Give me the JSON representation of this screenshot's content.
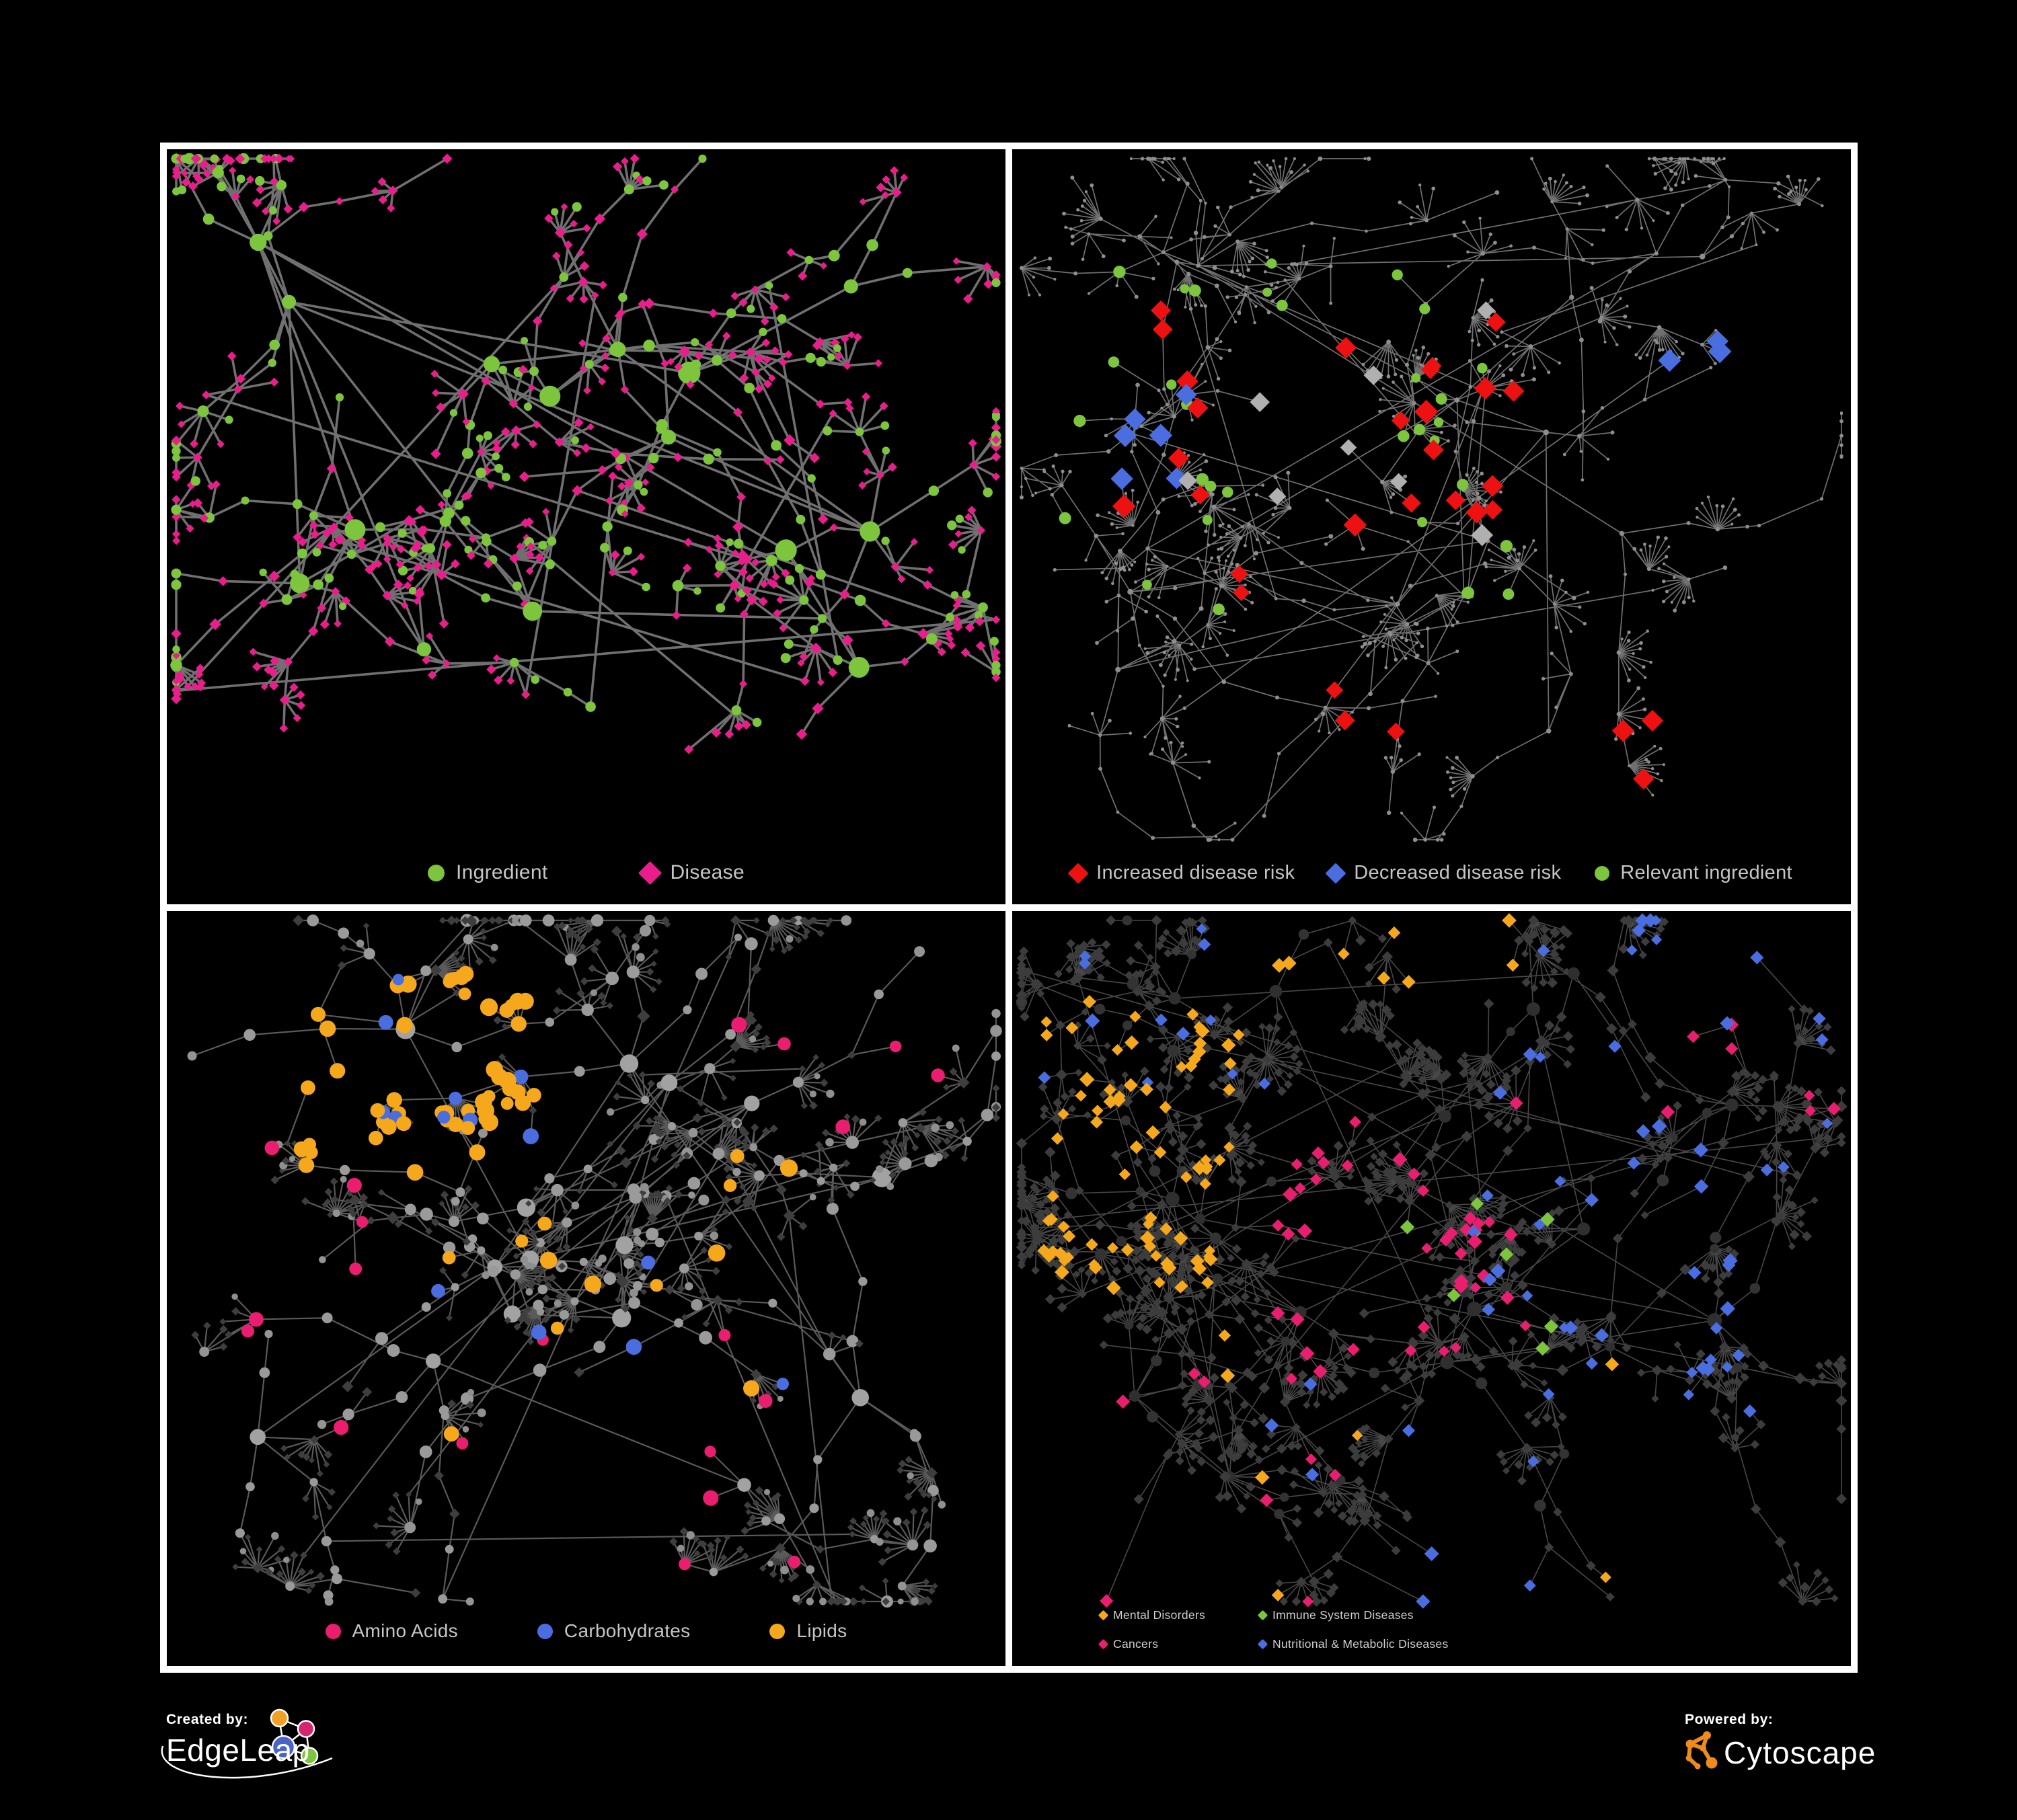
{
  "canvas": {
    "background": "#000000",
    "frame_color": "#ffffff",
    "panel_background": "#000000",
    "legend_text_color": "#c6c6c6"
  },
  "panels": [
    {
      "name": "ingredient-disease",
      "legend": {
        "items": [
          {
            "label": "Ingredient",
            "shape": "circle",
            "color": "#7cc53c"
          },
          {
            "label": "Disease",
            "shape": "diamond",
            "color": "#ea1d8c"
          }
        ]
      },
      "network": {
        "seed": 7,
        "clusters": 15,
        "fan": 0.34,
        "fanMax": 5,
        "cross": 12,
        "edge": {
          "color": "#7a7a7a",
          "width": 3.6,
          "opacity": 0.92
        },
        "roles": {
          "hub": {
            "size": [
              10,
              17
            ],
            "choices": [
              {
                "shape": "circle",
                "color": "#7cc53c",
                "w": 0.85
              },
              {
                "shape": "diamond",
                "color": "#ea1d8c",
                "w": 0.15
              }
            ]
          },
          "mid": {
            "size": [
              6,
              9
            ],
            "choices": [
              {
                "shape": "circle",
                "color": "#7cc53c",
                "w": 0.5
              },
              {
                "shape": "diamond",
                "color": "#ea1d8c",
                "w": 0.5
              }
            ]
          },
          "end": {
            "size": [
              6,
              8.5
            ],
            "choices": [
              {
                "shape": "diamond",
                "color": "#ea1d8c",
                "w": 0.65
              },
              {
                "shape": "circle",
                "color": "#7cc53c",
                "w": 0.35
              }
            ]
          },
          "leaf": {
            "size": [
              5.5,
              7.5
            ],
            "choices": [
              {
                "shape": "diamond",
                "color": "#ea1d8c",
                "w": 0.8
              },
              {
                "shape": "circle",
                "color": "#7cc53c",
                "w": 0.2
              }
            ]
          }
        },
        "overlays": []
      }
    },
    {
      "name": "disease-risk",
      "legend": {
        "items": [
          {
            "label": "Increased disease risk",
            "shape": "diamond",
            "color": "#ee1111"
          },
          {
            "label": "Decreased disease risk",
            "shape": "diamond",
            "color": "#4a6ee0"
          },
          {
            "label": "Relevant ingredient",
            "shape": "circle",
            "color": "#7cc53c"
          }
        ]
      },
      "network": {
        "seed": 13,
        "clusters": 18,
        "fan": 0.4,
        "fanMax": 10,
        "cross": 10,
        "edge": {
          "color": "#8c8c8c",
          "width": 1.7,
          "opacity": 0.8
        },
        "roles": {
          "hub": {
            "size": [
              3,
              4.5
            ],
            "choices": [
              {
                "shape": "circle",
                "color": "#8e8e8e",
                "w": 1
              }
            ]
          },
          "mid": {
            "size": [
              2.2,
              3.5
            ],
            "choices": [
              {
                "shape": "circle",
                "color": "#8e8e8e",
                "w": 1
              }
            ]
          },
          "end": {
            "size": [
              2.2,
              3.5
            ],
            "choices": [
              {
                "shape": "circle",
                "color": "#8e8e8e",
                "w": 1
              }
            ]
          },
          "leaf": {
            "size": [
              2,
              3
            ],
            "choices": [
              {
                "shape": "circle",
                "color": "#8e8e8e",
                "w": 1
              }
            ]
          }
        },
        "overlays": [
          {
            "shape": "diamond",
            "color": "#ee1111",
            "count": 22,
            "size": 15,
            "region": [
              0.07,
              0.18,
              0.6,
              0.52
            ]
          },
          {
            "shape": "diamond",
            "color": "#ee1111",
            "count": 5,
            "size": 15,
            "region": [
              0.25,
              0.52,
              0.5,
              0.8
            ]
          },
          {
            "shape": "diamond",
            "color": "#ee1111",
            "count": 3,
            "size": 15,
            "region": [
              0.58,
              0.72,
              0.78,
              0.88
            ]
          },
          {
            "shape": "diamond",
            "color": "#4a6ee0",
            "count": 6,
            "size": 15,
            "region": [
              0.08,
              0.2,
              0.24,
              0.44
            ]
          },
          {
            "shape": "diamond",
            "color": "#4a6ee0",
            "count": 3,
            "size": 15,
            "region": [
              0.78,
              0.18,
              0.94,
              0.28
            ]
          },
          {
            "shape": "diamond",
            "color": "#b0b0b0",
            "count": 8,
            "size": 14,
            "region": [
              0.08,
              0.2,
              0.6,
              0.52
            ]
          },
          {
            "shape": "circle",
            "color": "#7cc53c",
            "count": 26,
            "size": 8,
            "region": [
              0.06,
              0.14,
              0.62,
              0.5
            ]
          },
          {
            "shape": "circle",
            "color": "#7cc53c",
            "count": 5,
            "size": 8,
            "region": [
              0.1,
              0.5,
              0.6,
              0.72
            ]
          }
        ]
      }
    },
    {
      "name": "macronutrients",
      "legend": {
        "items": [
          {
            "label": "Amino Acids",
            "shape": "circle",
            "color": "#ea1d6f"
          },
          {
            "label": "Carbohydrates",
            "shape": "circle",
            "color": "#4a6ee0"
          },
          {
            "label": "Lipids",
            "shape": "circle",
            "color": "#f5a81c"
          }
        ]
      },
      "network": {
        "seed": 21,
        "clusters": 15,
        "fan": 0.4,
        "fanMax": 10,
        "cross": 12,
        "edge": {
          "color": "#787878",
          "width": 2.2,
          "opacity": 0.75
        },
        "roles": {
          "hub": {
            "size": [
              9,
              15
            ],
            "choices": [
              {
                "shape": "circle",
                "color": "#a2a2a2",
                "w": 1
              }
            ]
          },
          "mid": {
            "size": [
              6,
              10
            ],
            "choices": [
              {
                "shape": "circle",
                "color": "#9a9a9a",
                "w": 0.8
              },
              {
                "shape": "diamond",
                "color": "#3e3e3e",
                "w": 0.2
              }
            ]
          },
          "end": {
            "size": [
              5,
              9
            ],
            "choices": [
              {
                "shape": "circle",
                "color": "#949494",
                "w": 0.45
              },
              {
                "shape": "diamond",
                "color": "#3e3e3e",
                "w": 0.55
              }
            ]
          },
          "leaf": {
            "size": [
              4.5,
              6.5
            ],
            "choices": [
              {
                "shape": "diamond",
                "color": "#3e3e3e",
                "w": 0.85
              },
              {
                "shape": "circle",
                "color": "#8f8f8f",
                "w": 0.15
              }
            ]
          }
        },
        "overlays": [
          {
            "shape": "circle",
            "color": "#f5a81c",
            "count": 48,
            "size": 11,
            "region": [
              0.16,
              0.08,
              0.44,
              0.32
            ]
          },
          {
            "shape": "circle",
            "color": "#f5a81c",
            "count": 16,
            "size": 11,
            "region": [
              0.1,
              0.3,
              0.8,
              0.72
            ]
          },
          {
            "shape": "circle",
            "color": "#4a6ee0",
            "count": 10,
            "size": 10,
            "region": [
              0.2,
              0.08,
              0.44,
              0.3
            ]
          },
          {
            "shape": "circle",
            "color": "#4a6ee0",
            "count": 5,
            "size": 10,
            "region": [
              0.3,
              0.45,
              0.8,
              0.7
            ]
          },
          {
            "shape": "circle",
            "color": "#ea1d6f",
            "count": 7,
            "size": 10,
            "region": [
              0.04,
              0.28,
              0.28,
              0.8
            ]
          },
          {
            "shape": "circle",
            "color": "#ea1d6f",
            "count": 8,
            "size": 10,
            "region": [
              0.35,
              0.55,
              0.8,
              0.88
            ]
          },
          {
            "shape": "circle",
            "color": "#ea1d6f",
            "count": 5,
            "size": 10,
            "region": [
              0.5,
              0.05,
              0.95,
              0.3
            ]
          }
        ]
      }
    },
    {
      "name": "disease-categories",
      "legend": {
        "items": [
          {
            "label": "Mental Disorders",
            "shape": "diamond",
            "color": "#f5a81c"
          },
          {
            "label": "Immune System Diseases",
            "shape": "diamond",
            "color": "#7cc53c"
          },
          {
            "label": "Cancers",
            "shape": "diamond",
            "color": "#ea1d6f"
          },
          {
            "label": "Nutritional & Metabolic Diseases",
            "shape": "diamond",
            "color": "#4a6ee0"
          }
        ]
      },
      "network": {
        "seed": 33,
        "clusters": 18,
        "fan": 0.42,
        "fanMax": 10,
        "cross": 14,
        "edge": {
          "color": "#909090",
          "width": 1.6,
          "opacity": 0.5
        },
        "roles": {
          "hub": {
            "size": [
              7,
              11
            ],
            "choices": [
              {
                "shape": "circle",
                "color": "#2f2f2f",
                "w": 1
              }
            ]
          },
          "mid": {
            "size": [
              6.5,
              9
            ],
            "choices": [
              {
                "shape": "diamond",
                "color": "#3c3c3c",
                "w": 0.8
              },
              {
                "shape": "circle",
                "color": "#333333",
                "w": 0.2
              }
            ]
          },
          "end": {
            "size": [
              6,
              8.5
            ],
            "choices": [
              {
                "shape": "diamond",
                "color": "#3c3c3c",
                "w": 1
              }
            ]
          },
          "leaf": {
            "size": [
              5.5,
              8
            ],
            "choices": [
              {
                "shape": "diamond",
                "color": "#3c3c3c",
                "w": 1
              }
            ]
          }
        },
        "overlays": [
          {
            "shape": "diamond",
            "color": "#f5a81c",
            "count": 80,
            "size": 9.5,
            "region": [
              0.03,
              0.12,
              0.27,
              0.5
            ]
          },
          {
            "shape": "diamond",
            "color": "#f5a81c",
            "count": 8,
            "size": 9.5,
            "region": [
              0.25,
              0.0,
              0.6,
              0.12
            ]
          },
          {
            "shape": "diamond",
            "color": "#f5a81c",
            "count": 7,
            "size": 9.5,
            "region": [
              0.25,
              0.5,
              0.75,
              0.92
            ]
          },
          {
            "shape": "diamond",
            "color": "#ea1d6f",
            "count": 42,
            "size": 9.5,
            "region": [
              0.3,
              0.25,
              0.62,
              0.62
            ]
          },
          {
            "shape": "diamond",
            "color": "#ea1d6f",
            "count": 7,
            "size": 9.5,
            "region": [
              0.78,
              0.1,
              0.98,
              0.28
            ]
          },
          {
            "shape": "diamond",
            "color": "#ea1d6f",
            "count": 8,
            "size": 9.5,
            "region": [
              0.08,
              0.6,
              0.45,
              0.95
            ]
          },
          {
            "shape": "diamond",
            "color": "#4a6ee0",
            "count": 28,
            "size": 9.5,
            "region": [
              0.55,
              0.35,
              0.88,
              0.68
            ]
          },
          {
            "shape": "diamond",
            "color": "#4a6ee0",
            "count": 22,
            "size": 9.5,
            "region": [
              0.58,
              0.0,
              0.98,
              0.35
            ]
          },
          {
            "shape": "diamond",
            "color": "#4a6ee0",
            "count": 12,
            "size": 9.5,
            "region": [
              0.03,
              0.0,
              0.35,
              0.28
            ]
          },
          {
            "shape": "diamond",
            "color": "#4a6ee0",
            "count": 8,
            "size": 9.5,
            "region": [
              0.3,
              0.62,
              0.7,
              0.95
            ]
          },
          {
            "shape": "diamond",
            "color": "#7cc53c",
            "count": 8,
            "size": 9.5,
            "region": [
              0.3,
              0.2,
              0.7,
              0.62
            ]
          }
        ]
      }
    }
  ],
  "footer": {
    "created_by": {
      "label": "Created by:",
      "name": "EdgeLeap"
    },
    "powered_by": {
      "label": "Powered by:",
      "name": "Cytoscape"
    },
    "brand_colors": {
      "edgeleap_blue": "#4a63c8",
      "edgeleap_orange": "#f0a125",
      "edgeleap_pink": "#d4256e",
      "edgeleap_green": "#7cc53c",
      "cytoscape_orange": "#ef8a1d"
    }
  }
}
